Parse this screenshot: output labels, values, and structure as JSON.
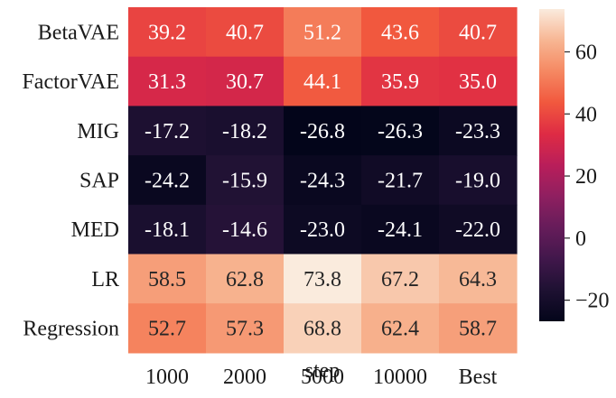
{
  "chart_data": {
    "type": "heatmap",
    "xlabel": "step",
    "ylabel": "",
    "x_categories": [
      "1000",
      "2000",
      "5000",
      "10000",
      "Best"
    ],
    "y_categories": [
      "BetaVAE",
      "FactorVAE",
      "MIG",
      "SAP",
      "MED",
      "LR",
      "Regression"
    ],
    "values": [
      [
        39.2,
        40.7,
        51.2,
        43.6,
        40.7
      ],
      [
        31.3,
        30.7,
        44.1,
        35.9,
        35.0
      ],
      [
        -17.2,
        -18.2,
        -26.8,
        -26.3,
        -23.3
      ],
      [
        -24.2,
        -15.9,
        -24.3,
        -21.7,
        -19.0
      ],
      [
        -18.1,
        -14.6,
        -23.0,
        -24.1,
        -22.0
      ],
      [
        58.5,
        62.8,
        73.8,
        67.2,
        64.3
      ],
      [
        52.7,
        57.3,
        68.8,
        62.4,
        58.7
      ]
    ],
    "value_labels": [
      [
        "39.2",
        "40.7",
        "51.2",
        "43.6",
        "40.7"
      ],
      [
        "31.3",
        "30.7",
        "44.1",
        "35.9",
        "35.0"
      ],
      [
        "-17.2",
        "-18.2",
        "-26.8",
        "-26.3",
        "-23.3"
      ],
      [
        "-24.2",
        "-15.9",
        "-24.3",
        "-21.7",
        "-19.0"
      ],
      [
        "-18.1",
        "-14.6",
        "-23.0",
        "-24.1",
        "-22.0"
      ],
      [
        "58.5",
        "62.8",
        "73.8",
        "67.2",
        "64.3"
      ],
      [
        "52.7",
        "57.3",
        "68.8",
        "62.4",
        "58.7"
      ]
    ],
    "colorbar": {
      "colormap": "rocket",
      "vmin": -26.8,
      "vmax": 73.8,
      "ticks": [
        -20,
        0,
        20,
        40,
        60
      ],
      "tick_labels": [
        "−20",
        "0",
        "20",
        "40",
        "60"
      ]
    },
    "grid": false,
    "legend": "colorbar-right"
  }
}
